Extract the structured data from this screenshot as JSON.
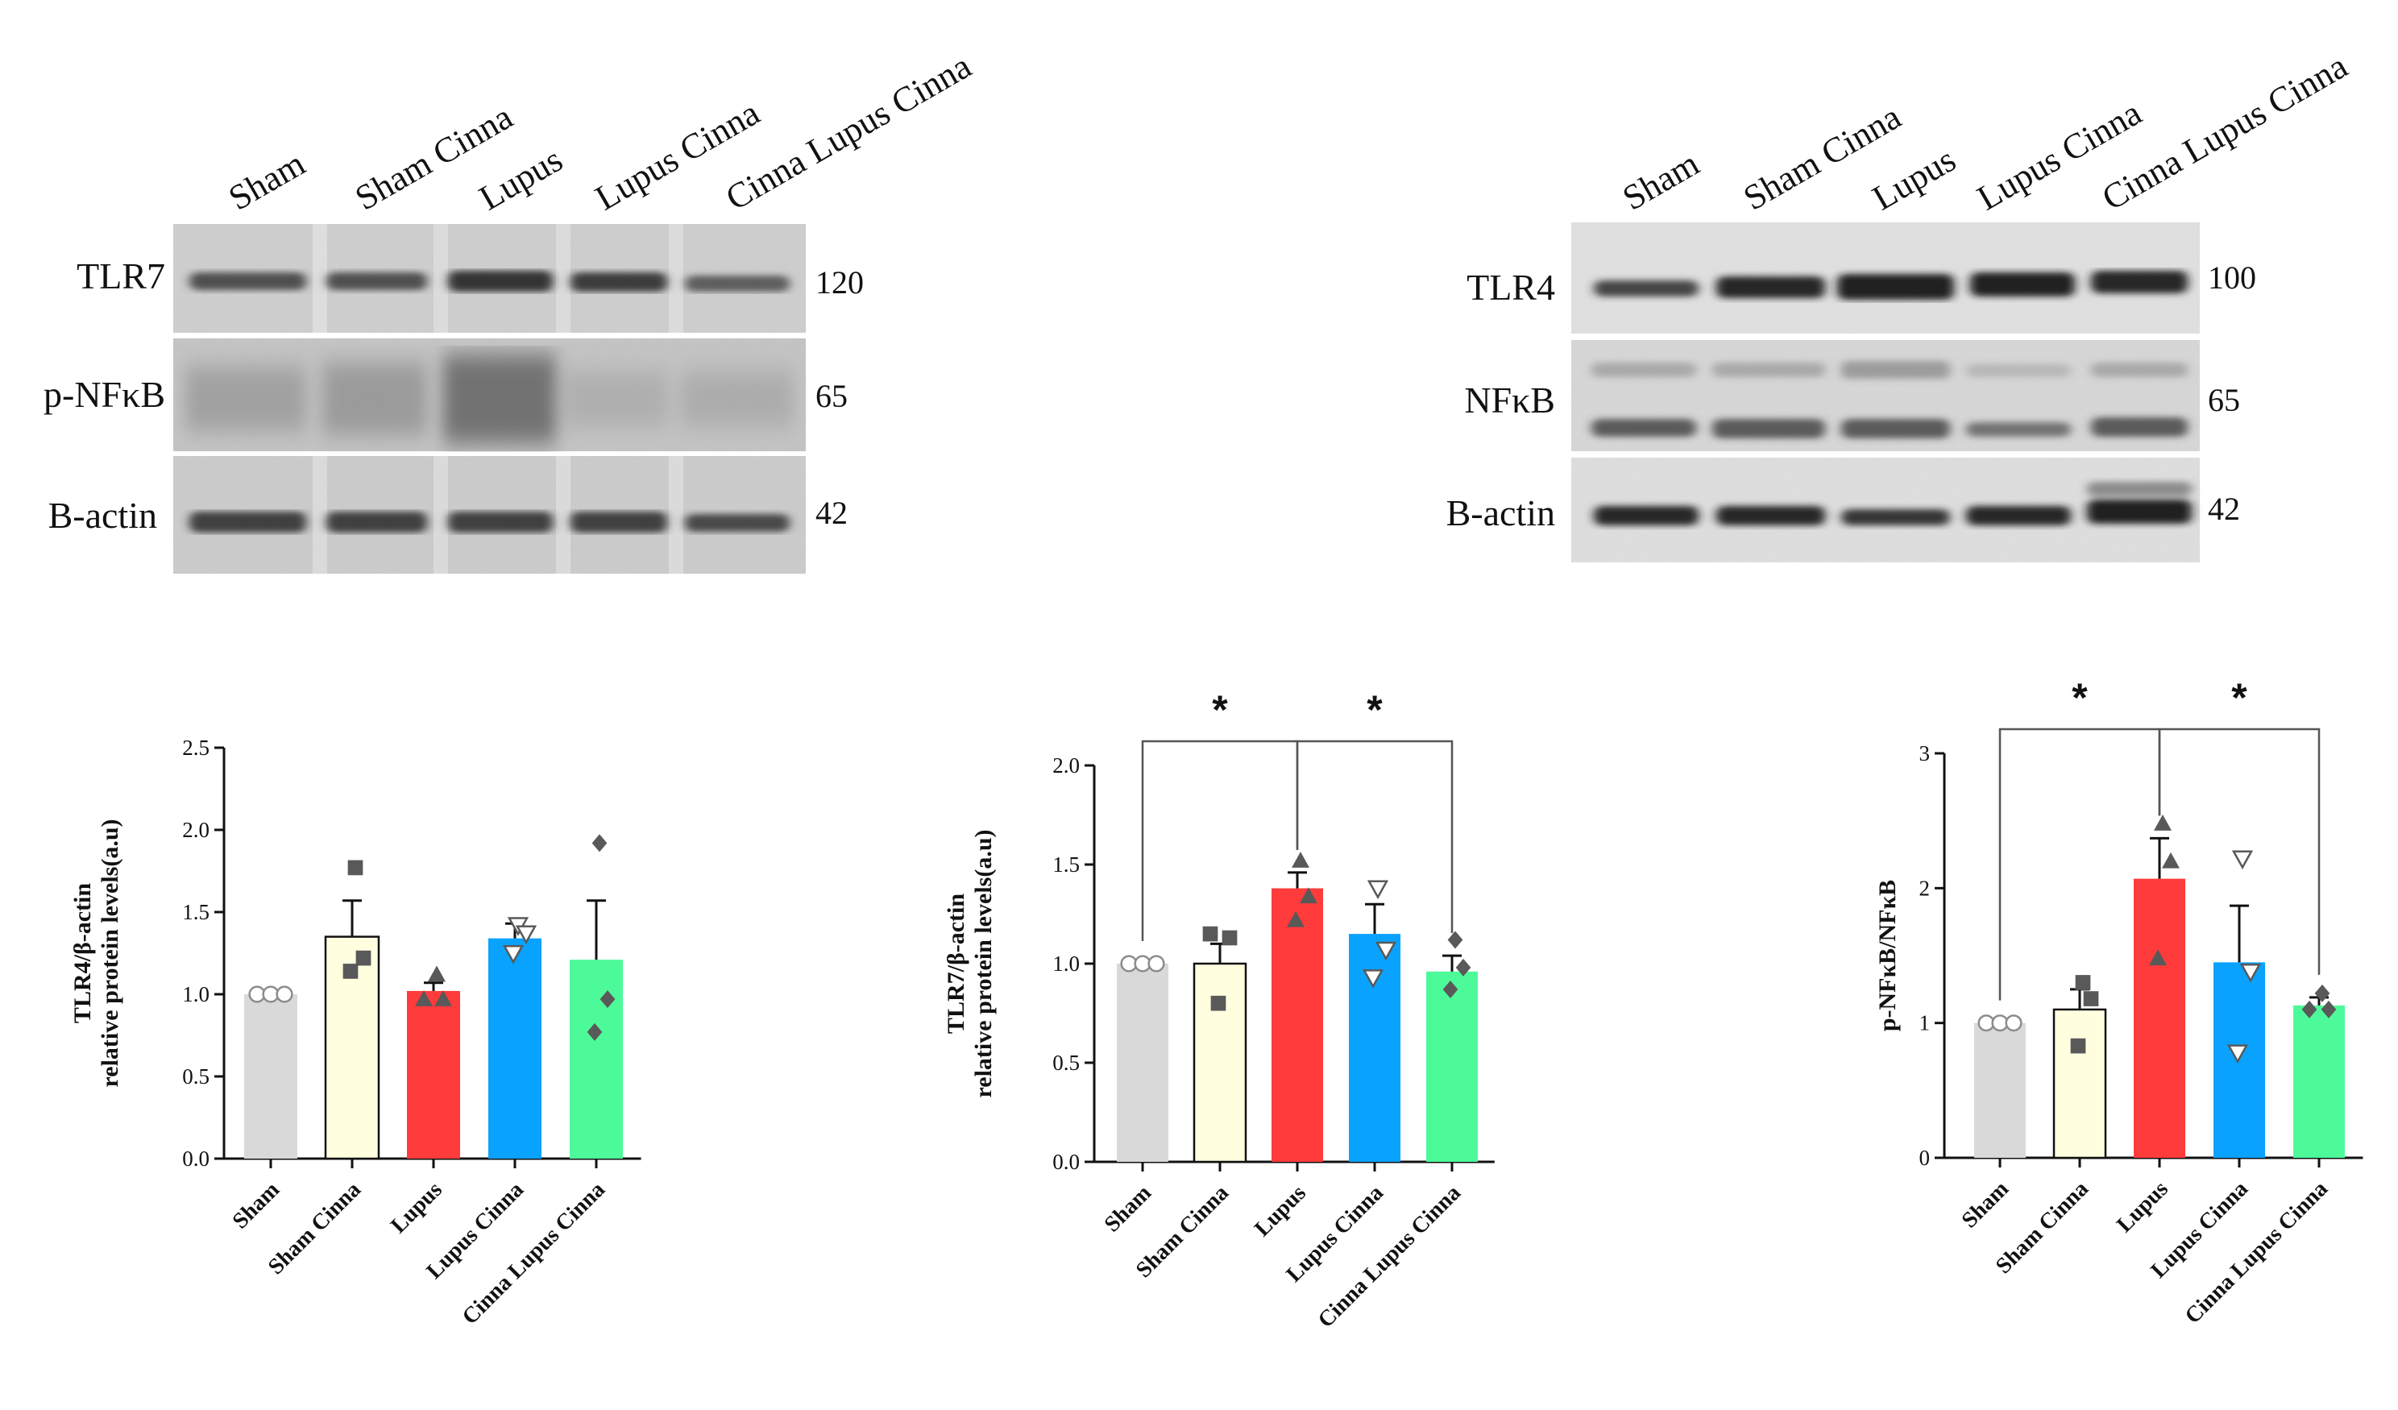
{
  "blots": {
    "left": {
      "lanes": [
        "Sham",
        "Sham Cinna",
        "Lupus",
        "Lupus Cinna",
        "Cinna Lupus Cinna"
      ],
      "rows": [
        {
          "label": "TLR7",
          "kda": "120"
        },
        {
          "label": "p-NFκB",
          "kda": "65"
        },
        {
          "label": "B-actin",
          "kda": "42"
        }
      ]
    },
    "right": {
      "lanes": [
        "Sham",
        "Sham Cinna",
        "Lupus",
        "Lupus Cinna",
        "Cinna Lupus Cinna"
      ],
      "rows": [
        {
          "label": "TLR4",
          "kda": "100"
        },
        {
          "label": "NFκB",
          "kda": "65"
        },
        {
          "label": "B-actin",
          "kda": "42"
        }
      ]
    }
  },
  "chart_data": [
    {
      "type": "bar",
      "ylabel": [
        "TLR4/β-actin",
        "relative protein levels(a.u)"
      ],
      "categories": [
        "Sham",
        "Sham Cinna",
        "Lupus",
        "Lupus Cinna",
        "Cinna Lupus Cinna"
      ],
      "values": [
        1.0,
        1.35,
        1.02,
        1.34,
        1.21
      ],
      "errors": [
        0.0,
        0.22,
        0.05,
        0.09,
        0.36
      ],
      "points": [
        [
          1.0,
          1.0,
          1.0
        ],
        [
          1.77,
          1.22,
          1.14
        ],
        [
          1.12,
          0.97,
          0.97
        ],
        [
          1.42,
          1.37,
          1.25
        ],
        [
          1.92,
          0.97,
          0.77
        ]
      ],
      "ylim": [
        0,
        2.5
      ],
      "yticks": [
        "0.0",
        "0.5",
        "1.0",
        "1.5",
        "2.0",
        "2.5"
      ],
      "significance": []
    },
    {
      "type": "bar",
      "ylabel": [
        "TLR7/β-actin",
        "relative protein levels(a.u)"
      ],
      "categories": [
        "Sham",
        "Sham Cinna",
        "Lupus",
        "Lupus Cinna",
        "Cinna Lupus Cinna"
      ],
      "values": [
        1.0,
        1.0,
        1.38,
        1.15,
        0.96
      ],
      "errors": [
        0.0,
        0.1,
        0.08,
        0.15,
        0.08
      ],
      "points": [
        [
          1.0,
          1.0,
          1.0
        ],
        [
          1.15,
          1.13,
          0.8
        ],
        [
          1.52,
          1.34,
          1.22
        ],
        [
          1.38,
          1.07,
          0.93
        ],
        [
          1.12,
          0.98,
          0.87
        ]
      ],
      "ylim": [
        0,
        2.0
      ],
      "yticks": [
        "0.0",
        "0.5",
        "1.0",
        "1.5",
        "2.0"
      ],
      "significance": [
        {
          "from": 0,
          "to": 2,
          "label": "*"
        },
        {
          "from": 2,
          "to": 4,
          "label": "*"
        }
      ]
    },
    {
      "type": "bar",
      "ylabel": [
        "p-NFκB/NFκB"
      ],
      "categories": [
        "Sham",
        "Sham Cinna",
        "Lupus",
        "Lupus Cinna",
        "Cinna Lupus Cinna"
      ],
      "values": [
        1.0,
        1.1,
        2.07,
        1.45,
        1.13
      ],
      "errors": [
        0.0,
        0.15,
        0.3,
        0.42,
        0.06
      ],
      "points": [
        [
          1.0,
          1.0,
          1.0
        ],
        [
          1.3,
          1.18,
          0.83
        ],
        [
          2.48,
          2.2,
          1.48
        ],
        [
          2.22,
          1.38,
          0.78
        ],
        [
          1.22,
          1.1,
          1.1
        ]
      ],
      "ylim": [
        0,
        3
      ],
      "yticks": [
        "0",
        "1",
        "2",
        "3"
      ],
      "significance": [
        {
          "from": 0,
          "to": 2,
          "label": "*"
        },
        {
          "from": 2,
          "to": 4,
          "label": "*"
        }
      ]
    }
  ],
  "colors": {
    "bars": [
      "#d9d9d9",
      "#ffffe0",
      "#ff3b3b",
      "#0aa2ff",
      "#4dfa9a"
    ],
    "markers": "#595959"
  }
}
